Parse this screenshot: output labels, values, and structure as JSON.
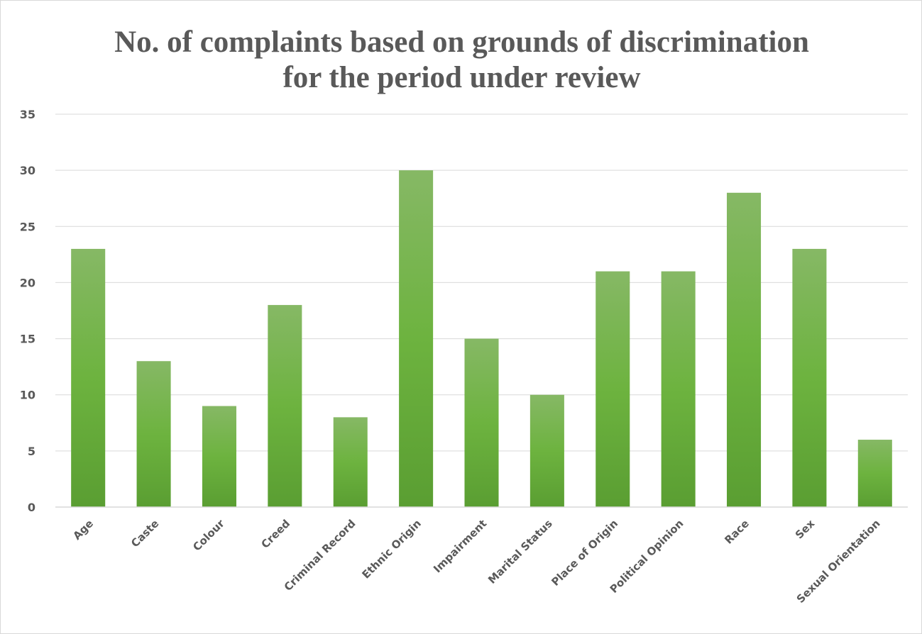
{
  "chart_data": {
    "type": "bar",
    "title_lines": [
      "No. of complaints based on grounds of discrimination",
      "for the period under review"
    ],
    "xlabel": "",
    "ylabel": "",
    "categories": [
      "Age",
      "Caste",
      "Colour",
      "Creed",
      "Criminal Record",
      "Ethnic Origin",
      "Impairment",
      "Marital Status",
      "Place of Origin",
      "Political Opinion",
      "Race",
      "Sex",
      "Sexual Orientation"
    ],
    "values": [
      23,
      13,
      9,
      18,
      8,
      30,
      15,
      10,
      21,
      21,
      28,
      23,
      6
    ],
    "ylim": [
      0,
      35
    ],
    "yticks": [
      "0",
      "5",
      "10",
      "15",
      "20",
      "25",
      "30",
      "35"
    ],
    "grid": true,
    "legend": "none",
    "bar_color_top": "#86b865",
    "bar_color_mid": "#6db33f",
    "bar_color_bottom": "#5a9e32",
    "grid_color": "#d9d9d9",
    "text_color": "#595959"
  }
}
